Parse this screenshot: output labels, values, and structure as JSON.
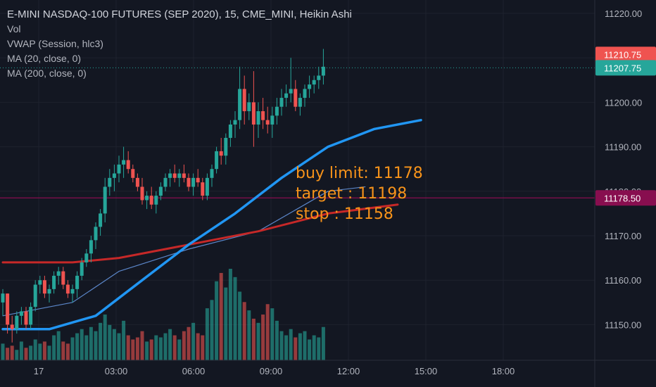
{
  "legend": {
    "title": "E-MINI NASDAQ-100 FUTURES (SEP 2020), 15, CME_MINI, Heikin Ashi",
    "studies": [
      "Vol",
      "VWAP (Session, hlc3)",
      "MA (20, close, 0)",
      "MA (200, close, 0)"
    ]
  },
  "annotation": {
    "line1": "buy limit: 11178",
    "line2": "target : 11198",
    "line3": "stop : 11158"
  },
  "price_labels": [
    {
      "text": "11210.75",
      "value": 11210.75,
      "color": "#ef5350"
    },
    {
      "text": "11207.75",
      "value": 11207.75,
      "color": "#26a69a"
    },
    {
      "text": "11178.50",
      "value": 11178.5,
      "color": "#880e4f"
    }
  ],
  "colors": {
    "background": "#131722",
    "up": "#26a69a",
    "down": "#ef5350",
    "vol_up": "#26a69a",
    "vol_down": "#ef5350",
    "ma20": "#2196f3",
    "ma200": "#c62828",
    "vwap": "#5b86c9",
    "hline": "#880e4f",
    "annotation": "#f7931a",
    "text": "#b2b5be"
  },
  "chart_data": {
    "type": "candlestick",
    "title": "E-MINI NASDAQ-100 FUTURES (SEP 2020), 15, CME_MINI, Heikin Ashi",
    "xlabels": [
      "17",
      "03:00",
      "06:00",
      "09:00",
      "12:00",
      "15:00",
      "18:00"
    ],
    "yticks": [
      11150,
      11160,
      11170,
      11180,
      11190,
      11200,
      11210,
      11220
    ],
    "ylim": [
      11142,
      11223
    ],
    "grid": true,
    "horizontal_line": 11178.5,
    "last_price": 11207.75,
    "candles": [
      [
        11155,
        11158,
        11152,
        11157
      ],
      [
        11157,
        11157,
        11148,
        11150
      ],
      [
        11150,
        11152,
        11146,
        11149
      ],
      [
        11149,
        11153,
        11148,
        11152
      ],
      [
        11152,
        11154,
        11150,
        11153
      ],
      [
        11153,
        11154,
        11149,
        11150
      ],
      [
        11150,
        11155,
        11149,
        11154
      ],
      [
        11154,
        11160,
        11153,
        11159
      ],
      [
        11159,
        11161,
        11157,
        11160
      ],
      [
        11160,
        11161,
        11156,
        11157
      ],
      [
        11157,
        11159,
        11155,
        11158
      ],
      [
        11158,
        11162,
        11157,
        11161
      ],
      [
        11161,
        11163,
        11159,
        11162
      ],
      [
        11162,
        11163,
        11158,
        11159
      ],
      [
        11159,
        11160,
        11156,
        11157
      ],
      [
        11157,
        11159,
        11155,
        11158
      ],
      [
        11158,
        11162,
        11156,
        11161
      ],
      [
        11161,
        11165,
        11160,
        11164
      ],
      [
        11164,
        11167,
        11163,
        11166
      ],
      [
        11166,
        11170,
        11164,
        11169
      ],
      [
        11169,
        11173,
        11167,
        11172
      ],
      [
        11172,
        11176,
        11170,
        11175
      ],
      [
        11175,
        11183,
        11173,
        11181
      ],
      [
        11181,
        11185,
        11179,
        11183
      ],
      [
        11183,
        11186,
        11180,
        11184
      ],
      [
        11184,
        11188,
        11182,
        11186
      ],
      [
        11186,
        11190,
        11183,
        11187
      ],
      [
        11187,
        11189,
        11184,
        11185
      ],
      [
        11185,
        11186,
        11182,
        11183
      ],
      [
        11183,
        11184,
        11180,
        11181
      ],
      [
        11181,
        11183,
        11177,
        11178
      ],
      [
        11178,
        11180,
        11176,
        11179
      ],
      [
        11179,
        11181,
        11176,
        11177
      ],
      [
        11177,
        11180,
        11175,
        11179
      ],
      [
        11179,
        11182,
        11178,
        11181
      ],
      [
        11181,
        11184,
        11180,
        11183
      ],
      [
        11183,
        11185,
        11181,
        11184
      ],
      [
        11184,
        11186,
        11182,
        11183
      ],
      [
        11183,
        11185,
        11181,
        11184
      ],
      [
        11184,
        11186,
        11182,
        11183
      ],
      [
        11183,
        11184,
        11180,
        11181
      ],
      [
        11181,
        11184,
        11179,
        11183
      ],
      [
        11183,
        11185,
        11181,
        11182
      ],
      [
        11182,
        11183,
        11178,
        11179
      ],
      [
        11179,
        11184,
        11178,
        11183
      ],
      [
        11183,
        11186,
        11181,
        11185
      ],
      [
        11185,
        11190,
        11184,
        11189
      ],
      [
        11189,
        11192,
        11186,
        11188
      ],
      [
        11188,
        11193,
        11186,
        11192
      ],
      [
        11192,
        11196,
        11190,
        11195
      ],
      [
        11195,
        11198,
        11192,
        11196
      ],
      [
        11196,
        11208,
        11194,
        11203
      ],
      [
        11203,
        11206,
        11195,
        11198
      ],
      [
        11198,
        11202,
        11196,
        11200
      ],
      [
        11200,
        11207,
        11190,
        11195
      ],
      [
        11195,
        11200,
        11192,
        11198
      ],
      [
        11198,
        11201,
        11194,
        11196
      ],
      [
        11196,
        11199,
        11193,
        11195
      ],
      [
        11195,
        11199,
        11192,
        11197
      ],
      [
        11197,
        11201,
        11195,
        11199
      ],
      [
        11199,
        11203,
        11197,
        11201
      ],
      [
        11201,
        11204,
        11199,
        11202
      ],
      [
        11202,
        11210,
        11200,
        11203
      ],
      [
        11203,
        11205,
        11198,
        11199
      ],
      [
        11199,
        11202,
        11197,
        11201
      ],
      [
        11201,
        11204,
        11199,
        11203
      ],
      [
        11203,
        11206,
        11201,
        11204
      ],
      [
        11204,
        11206,
        11202,
        11205
      ],
      [
        11205,
        11208,
        11203,
        11206
      ],
      [
        11206,
        11212,
        11204,
        11208
      ]
    ],
    "volume": [
      8,
      6,
      7,
      5,
      9,
      6,
      7,
      10,
      8,
      9,
      7,
      12,
      14,
      9,
      8,
      11,
      13,
      15,
      12,
      16,
      14,
      18,
      22,
      17,
      15,
      13,
      19,
      12,
      10,
      11,
      14,
      9,
      10,
      12,
      11,
      13,
      15,
      12,
      10,
      14,
      16,
      18,
      13,
      12,
      25,
      29,
      38,
      42,
      35,
      44,
      40,
      33,
      28,
      24,
      20,
      18,
      22,
      27,
      25,
      19,
      14,
      12,
      15,
      11,
      13,
      14,
      10,
      12,
      11,
      16
    ],
    "ma20": [
      [
        0,
        11149
      ],
      [
        10,
        11149
      ],
      [
        20,
        11152
      ],
      [
        30,
        11160
      ],
      [
        40,
        11168
      ],
      [
        50,
        11175
      ],
      [
        60,
        11183
      ],
      [
        70,
        11190
      ],
      [
        80,
        11194
      ],
      [
        90,
        11196
      ]
    ],
    "ma200": [
      [
        0,
        11164
      ],
      [
        15,
        11164
      ],
      [
        25,
        11165
      ],
      [
        40,
        11168
      ],
      [
        55,
        11171
      ],
      [
        70,
        11175
      ],
      [
        85,
        11177
      ]
    ],
    "vwap": [
      [
        0,
        11152
      ],
      [
        15,
        11155
      ],
      [
        25,
        11162
      ],
      [
        40,
        11167
      ],
      [
        55,
        11171
      ],
      [
        70,
        11180
      ],
      [
        78,
        11181
      ]
    ]
  }
}
